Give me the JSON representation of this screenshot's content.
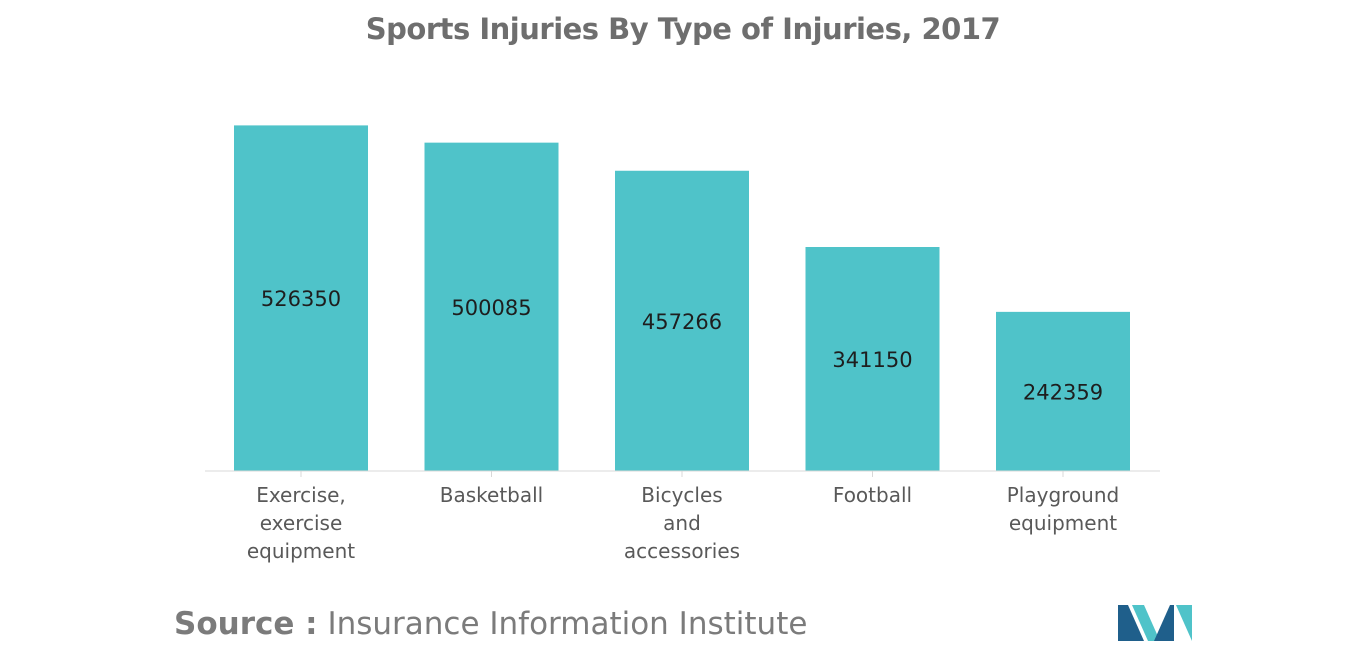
{
  "chart_data": {
    "type": "bar",
    "title": "Sports Injuries By Type of Injuries, 2017",
    "categories": [
      [
        "Exercise,",
        "exercise",
        "equipment"
      ],
      [
        "Basketball"
      ],
      [
        "Bicycles",
        "and",
        "accessories"
      ],
      [
        "Football"
      ],
      [
        "Playground",
        "equipment"
      ]
    ],
    "values": [
      526350,
      500085,
      457266,
      341150,
      242359
    ],
    "value_labels": [
      "526350",
      "500085",
      "457266",
      "341150",
      "242359"
    ],
    "ylim": [
      0,
      530000
    ],
    "bar_color": "#4fc3c9",
    "grid": false,
    "legend": "none"
  },
  "source": {
    "label": "Source :",
    "text": "Insurance Information Institute"
  },
  "colors": {
    "title": "#6e6e6e",
    "axis": "#d8d8d8",
    "logo_dark": "#1f5f8b",
    "logo_light": "#4fc3c9"
  }
}
